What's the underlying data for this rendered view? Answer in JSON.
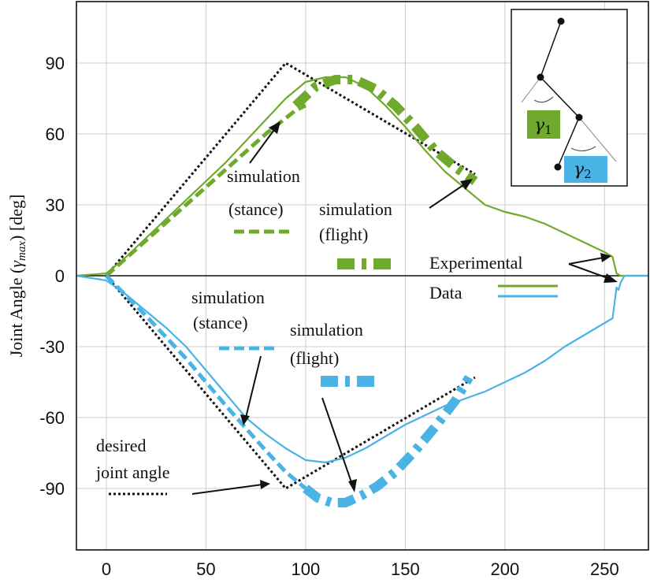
{
  "chart_data": {
    "type": "line",
    "title": "",
    "xlabel": "",
    "ylabel_text": "Joint Angle (",
    "ylabel_symbol": "γ",
    "ylabel_subscript": "max",
    "ylabel_unit": ") [deg]",
    "xlim": [
      -15,
      272
    ],
    "ylim": [
      -116,
      116
    ],
    "xticks": [
      "0",
      "50",
      "100",
      "150",
      "200",
      "250"
    ],
    "yticks": [
      "90",
      "60",
      "30",
      "0",
      "-30",
      "-60",
      "-90"
    ],
    "xtick_values": [
      0,
      50,
      100,
      150,
      200,
      250
    ],
    "ytick_values": [
      90,
      60,
      30,
      0,
      -30,
      -60,
      -90
    ],
    "grid": true,
    "colors": {
      "green": "#6faa2d",
      "blue": "#4ab3e6",
      "desired": "#111111"
    },
    "series": [
      {
        "key": "exp_g1",
        "style": "solid",
        "color": "green",
        "x": [
          -15,
          0,
          10,
          20,
          30,
          40,
          50,
          60,
          70,
          80,
          90,
          100,
          110,
          120,
          130,
          140,
          150,
          160,
          170,
          180,
          190,
          200,
          210,
          220,
          230,
          240,
          250,
          254,
          256,
          258,
          260,
          272
        ],
        "y": [
          0,
          1,
          8,
          16,
          24,
          32,
          40,
          48,
          57,
          66,
          75,
          82,
          84,
          84,
          80,
          72,
          63,
          53,
          44,
          37,
          30,
          27,
          25,
          22,
          18,
          14,
          10,
          8,
          1,
          0,
          0,
          0
        ]
      },
      {
        "key": "exp_g2",
        "style": "solid",
        "color": "blue",
        "x": [
          -15,
          0,
          10,
          20,
          30,
          40,
          50,
          60,
          70,
          80,
          90,
          100,
          110,
          120,
          130,
          140,
          150,
          160,
          170,
          180,
          190,
          200,
          210,
          220,
          230,
          240,
          250,
          254,
          256,
          257,
          258,
          260,
          272
        ],
        "y": [
          0,
          -2,
          -8,
          -15,
          -22,
          -30,
          -40,
          -50,
          -60,
          -67,
          -73,
          -78,
          -79,
          -77,
          -73,
          -68,
          -63,
          -59,
          -55,
          -52,
          -49,
          -45,
          -41,
          -36,
          -30,
          -25,
          -20,
          -18,
          -5,
          -6,
          -3,
          0,
          0
        ]
      },
      {
        "key": "sim_stance_g1",
        "style": "dashed",
        "color": "green",
        "x": [
          0,
          20,
          40,
          60,
          80,
          95,
          100
        ],
        "y": [
          0,
          15,
          30,
          45,
          60,
          70,
          72
        ]
      },
      {
        "key": "sim_flight_g1",
        "style": "dashdot",
        "color": "green",
        "x": [
          95,
          105,
          115,
          125,
          135,
          145,
          155,
          165,
          175,
          185
        ],
        "y": [
          72,
          80,
          83,
          83,
          79,
          72,
          63,
          53,
          46,
          40
        ]
      },
      {
        "key": "sim_stance_g2",
        "style": "dashed",
        "color": "blue",
        "x": [
          0,
          20,
          40,
          60,
          80,
          90,
          100
        ],
        "y": [
          0,
          -17,
          -35,
          -55,
          -74,
          -83,
          -90
        ]
      },
      {
        "key": "sim_flight_g2",
        "style": "dashdot",
        "color": "blue",
        "x": [
          100,
          106,
          113,
          120,
          128,
          136,
          145,
          155,
          165,
          175,
          182
        ],
        "y": [
          -90,
          -94,
          -96,
          -96,
          -93,
          -89,
          -83,
          -74,
          -64,
          -53,
          -43
        ]
      },
      {
        "key": "desired_g1",
        "style": "dotted",
        "color": "desired",
        "x": [
          0,
          90,
          185
        ],
        "y": [
          0,
          90,
          43
        ]
      },
      {
        "key": "desired_g2",
        "style": "dotted",
        "color": "desired",
        "x": [
          0,
          90,
          185
        ],
        "y": [
          0,
          -90,
          -43
        ]
      }
    ],
    "annotations": {
      "sim_stance_g1": [
        "simulation",
        "(stance)"
      ],
      "sim_flight_g1": [
        "simulation",
        "(flight)"
      ],
      "sim_stance_g2": [
        "simulation",
        "(stance)"
      ],
      "sim_flight_g2": [
        "simulation",
        "(flight)"
      ],
      "experimental": [
        "Experimental",
        "Data"
      ],
      "desired": [
        "desired",
        "joint angle"
      ]
    },
    "inset": {
      "gamma1_label": "γ",
      "gamma1_sub": "1",
      "gamma2_label": "γ",
      "gamma2_sub": "2"
    }
  }
}
